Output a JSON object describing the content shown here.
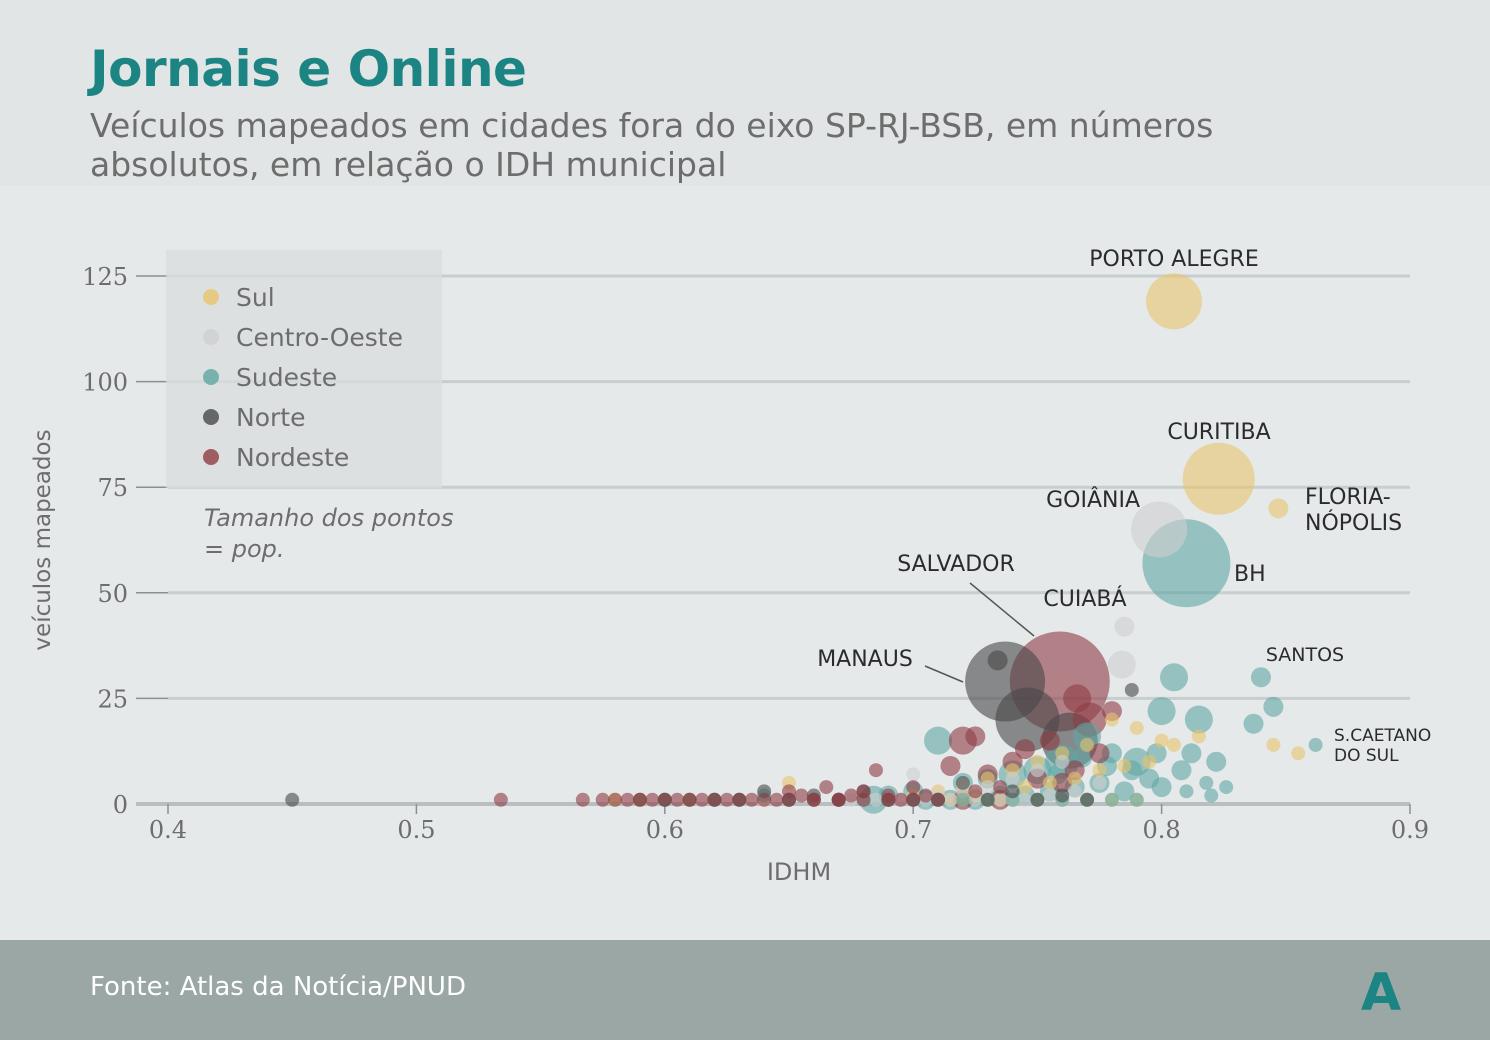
{
  "header": {
    "title": "Jornais e Online",
    "subtitle": "Veículos mapeados em cidades fora do eixo SP-RJ-BSB, em números absolutos, em relação o IDH municipal"
  },
  "footer": {
    "source": "Fonte: Atlas da Notícia/PNUD",
    "logo_text": "A"
  },
  "colors": {
    "Sul": "#e8c46c",
    "Centro-Oeste": "#cfcfcf",
    "Sudeste": "#5fa6a3",
    "Norte": "#484848",
    "Nordeste": "#8e3c44",
    "teal": "#1c8584"
  },
  "chart_data": {
    "type": "scatter",
    "title": "Jornais e Online",
    "subtitle": "Veículos mapeados em cidades fora do eixo SP-RJ-BSB, em números absolutos, em relação o IDH municipal",
    "xlabel": "IDHM",
    "ylabel": "veículos mapeados",
    "xlim": [
      0.4,
      0.9
    ],
    "ylim": [
      0,
      125
    ],
    "xticks": [
      "0.4",
      "0.5",
      "0.6",
      "0.7",
      "0.8",
      "0.9"
    ],
    "yticks": [
      "0",
      "25",
      "50",
      "75",
      "100",
      "125"
    ],
    "grid": true,
    "legend_position": "top-left",
    "legend": [
      "Sul",
      "Centro-Oeste",
      "Sudeste",
      "Norte",
      "Nordeste"
    ],
    "size_note": "Tamanho dos pontos = pop.",
    "labeled_points": [
      {
        "label": "PORTO ALEGRE",
        "region": "Sul",
        "x": 0.805,
        "y": 119,
        "size": 5
      },
      {
        "label": "CURITIBA",
        "region": "Sul",
        "x": 0.823,
        "y": 77,
        "size": 7
      },
      {
        "label": "FLORIA-NÓPOLIS",
        "region": "Sul",
        "x": 0.847,
        "y": 70,
        "size": 2
      },
      {
        "label": "GOIÂNIA",
        "region": "Centro-Oeste",
        "x": 0.799,
        "y": 65,
        "size": 5
      },
      {
        "label": "BH",
        "region": "Sudeste",
        "x": 0.81,
        "y": 57,
        "size": 9
      },
      {
        "label": "SALVADOR",
        "region": "Nordeste",
        "x": 0.759,
        "y": 29,
        "size": 10
      },
      {
        "label": "CUIABÁ",
        "region": "Centro-Oeste",
        "x": 0.785,
        "y": 42,
        "size": 2
      },
      {
        "label": "MANAUS",
        "region": "Norte",
        "x": 0.737,
        "y": 29,
        "size": 8
      },
      {
        "label": "SANTOS",
        "region": "Sudeste",
        "x": 0.84,
        "y": 30,
        "size": 2
      },
      {
        "label": "S.CAETANO DO SUL",
        "region": "Sudeste",
        "x": 0.862,
        "y": 14,
        "size": 1
      }
    ],
    "series": [
      {
        "name": "Sul",
        "points": [
          [
            0.805,
            119,
            5
          ],
          [
            0.823,
            77,
            7
          ],
          [
            0.847,
            70,
            2
          ],
          [
            0.845,
            14,
            1
          ],
          [
            0.855,
            12,
            1
          ],
          [
            0.78,
            20,
            1
          ],
          [
            0.79,
            18,
            1
          ],
          [
            0.77,
            14,
            1
          ],
          [
            0.8,
            15,
            1
          ],
          [
            0.76,
            12,
            1
          ],
          [
            0.75,
            10,
            1
          ],
          [
            0.74,
            8,
            1
          ],
          [
            0.73,
            6,
            1
          ],
          [
            0.72,
            4,
            1
          ],
          [
            0.71,
            3,
            1
          ],
          [
            0.7,
            2,
            1
          ],
          [
            0.69,
            1,
            1
          ],
          [
            0.68,
            1,
            1
          ],
          [
            0.67,
            1,
            1
          ],
          [
            0.66,
            1,
            1
          ],
          [
            0.65,
            5,
            1
          ],
          [
            0.64,
            1,
            1
          ],
          [
            0.63,
            1,
            1
          ],
          [
            0.62,
            1,
            1
          ],
          [
            0.61,
            1,
            1
          ],
          [
            0.6,
            1,
            1
          ],
          [
            0.59,
            1,
            1
          ],
          [
            0.58,
            1,
            1
          ],
          [
            0.765,
            6,
            1
          ],
          [
            0.775,
            8,
            1
          ],
          [
            0.755,
            5,
            1
          ],
          [
            0.745,
            4,
            1
          ],
          [
            0.785,
            9,
            1
          ],
          [
            0.795,
            10,
            1
          ],
          [
            0.805,
            14,
            1
          ],
          [
            0.815,
            16,
            1
          ],
          [
            0.725,
            2,
            1
          ],
          [
            0.735,
            1,
            1
          ],
          [
            0.715,
            1,
            1
          ],
          [
            0.76,
            1,
            1
          ],
          [
            0.77,
            1,
            1
          ],
          [
            0.78,
            1,
            1
          ],
          [
            0.79,
            1,
            1
          ],
          [
            0.75,
            1,
            1
          ],
          [
            0.74,
            1,
            1
          ],
          [
            0.73,
            1,
            1
          ],
          [
            0.72,
            1,
            1
          ],
          [
            0.71,
            1,
            1
          ]
        ]
      },
      {
        "name": "Centro-Oeste",
        "points": [
          [
            0.799,
            65,
            5
          ],
          [
            0.785,
            42,
            2
          ],
          [
            0.784,
            33,
            3
          ],
          [
            0.76,
            10,
            1
          ],
          [
            0.75,
            8,
            1
          ],
          [
            0.74,
            6,
            1
          ],
          [
            0.73,
            4,
            1
          ],
          [
            0.72,
            3,
            1
          ],
          [
            0.71,
            2,
            1
          ],
          [
            0.7,
            1,
            1
          ],
          [
            0.69,
            1,
            1
          ],
          [
            0.68,
            1,
            1
          ],
          [
            0.67,
            1,
            1
          ],
          [
            0.66,
            1,
            1
          ],
          [
            0.65,
            1,
            1
          ],
          [
            0.64,
            1,
            1
          ],
          [
            0.7,
            7,
            1
          ],
          [
            0.72,
            5,
            1
          ],
          [
            0.74,
            1,
            1
          ],
          [
            0.76,
            1,
            1
          ],
          [
            0.775,
            5,
            1
          ],
          [
            0.765,
            3,
            1
          ],
          [
            0.755,
            2,
            1
          ],
          [
            0.745,
            1,
            1
          ],
          [
            0.735,
            1,
            1
          ],
          [
            0.725,
            1,
            1
          ],
          [
            0.715,
            1,
            1
          ],
          [
            0.705,
            1,
            1
          ],
          [
            0.695,
            1,
            1
          ],
          [
            0.685,
            1,
            1
          ],
          [
            0.675,
            1,
            1
          ]
        ]
      },
      {
        "name": "Sudeste",
        "points": [
          [
            0.81,
            57,
            9
          ],
          [
            0.84,
            30,
            2
          ],
          [
            0.862,
            14,
            1
          ],
          [
            0.845,
            23,
            2
          ],
          [
            0.837,
            19,
            2
          ],
          [
            0.805,
            30,
            3
          ],
          [
            0.815,
            20,
            3
          ],
          [
            0.8,
            22,
            3
          ],
          [
            0.822,
            10,
            2
          ],
          [
            0.812,
            12,
            2
          ],
          [
            0.79,
            10,
            3
          ],
          [
            0.78,
            12,
            2
          ],
          [
            0.77,
            16,
            3
          ],
          [
            0.76,
            10,
            4
          ],
          [
            0.75,
            8,
            3
          ],
          [
            0.74,
            7,
            3
          ],
          [
            0.73,
            6,
            2
          ],
          [
            0.72,
            5,
            2
          ],
          [
            0.71,
            15,
            3
          ],
          [
            0.7,
            3,
            2
          ],
          [
            0.69,
            2,
            2
          ],
          [
            0.684,
            1,
            3
          ],
          [
            0.67,
            1,
            1
          ],
          [
            0.66,
            1,
            1
          ],
          [
            0.65,
            1,
            1
          ],
          [
            0.64,
            2,
            1
          ],
          [
            0.63,
            1,
            1
          ],
          [
            0.62,
            1,
            1
          ],
          [
            0.6,
            1,
            1
          ],
          [
            0.775,
            5,
            2
          ],
          [
            0.765,
            4,
            2
          ],
          [
            0.755,
            3,
            2
          ],
          [
            0.745,
            2,
            2
          ],
          [
            0.735,
            2,
            2
          ],
          [
            0.725,
            1,
            2
          ],
          [
            0.715,
            1,
            2
          ],
          [
            0.705,
            1,
            2
          ],
          [
            0.795,
            6,
            2
          ],
          [
            0.785,
            3,
            2
          ],
          [
            0.8,
            4,
            2
          ],
          [
            0.808,
            8,
            2
          ],
          [
            0.818,
            5,
            1
          ],
          [
            0.826,
            4,
            1
          ],
          [
            0.81,
            3,
            1
          ],
          [
            0.82,
            2,
            1
          ],
          [
            0.79,
            1,
            1
          ],
          [
            0.78,
            1,
            1
          ],
          [
            0.77,
            1,
            1
          ],
          [
            0.76,
            1,
            1
          ],
          [
            0.75,
            1,
            1
          ],
          [
            0.74,
            1,
            1
          ],
          [
            0.73,
            1,
            1
          ],
          [
            0.72,
            1,
            1
          ],
          [
            0.71,
            1,
            1
          ],
          [
            0.7,
            1,
            1
          ],
          [
            0.69,
            1,
            1
          ],
          [
            0.68,
            1,
            1
          ],
          [
            0.798,
            12,
            2
          ],
          [
            0.788,
            8,
            2
          ],
          [
            0.778,
            9,
            2
          ],
          [
            0.768,
            11,
            2
          ],
          [
            0.758,
            7,
            2
          ]
        ]
      },
      {
        "name": "Norte",
        "points": [
          [
            0.737,
            29,
            8
          ],
          [
            0.746,
            20,
            6
          ],
          [
            0.763,
            15,
            5
          ],
          [
            0.734,
            34,
            2
          ],
          [
            0.788,
            27,
            1
          ],
          [
            0.45,
            1,
            1
          ],
          [
            0.6,
            1,
            1
          ],
          [
            0.62,
            1,
            1
          ],
          [
            0.64,
            3,
            1
          ],
          [
            0.66,
            2,
            1
          ],
          [
            0.68,
            3,
            1
          ],
          [
            0.7,
            1,
            1
          ],
          [
            0.72,
            5,
            1
          ],
          [
            0.74,
            3,
            1
          ],
          [
            0.76,
            2,
            1
          ],
          [
            0.77,
            1,
            1
          ],
          [
            0.73,
            1,
            1
          ],
          [
            0.75,
            1,
            1
          ],
          [
            0.71,
            1,
            1
          ],
          [
            0.69,
            1,
            1
          ],
          [
            0.67,
            1,
            1
          ],
          [
            0.65,
            1,
            1
          ],
          [
            0.63,
            1,
            1
          ],
          [
            0.61,
            1,
            1
          ],
          [
            0.59,
            1,
            1
          ]
        ]
      },
      {
        "name": "Nordeste",
        "points": [
          [
            0.759,
            29,
            10
          ],
          [
            0.72,
            15,
            3
          ],
          [
            0.725,
            16,
            2
          ],
          [
            0.771,
            20,
            4
          ],
          [
            0.766,
            25,
            3
          ],
          [
            0.72,
            1,
            2
          ],
          [
            0.735,
            1,
            2
          ],
          [
            0.534,
            1,
            1
          ],
          [
            0.567,
            1,
            1
          ],
          [
            0.575,
            1,
            1
          ],
          [
            0.58,
            1,
            1
          ],
          [
            0.585,
            1,
            1
          ],
          [
            0.59,
            1,
            1
          ],
          [
            0.595,
            1,
            1
          ],
          [
            0.6,
            1,
            1
          ],
          [
            0.605,
            1,
            1
          ],
          [
            0.61,
            1,
            1
          ],
          [
            0.615,
            1,
            1
          ],
          [
            0.62,
            1,
            1
          ],
          [
            0.625,
            1,
            1
          ],
          [
            0.63,
            1,
            1
          ],
          [
            0.635,
            1,
            1
          ],
          [
            0.64,
            1,
            1
          ],
          [
            0.645,
            1,
            1
          ],
          [
            0.65,
            3,
            1
          ],
          [
            0.655,
            2,
            1
          ],
          [
            0.66,
            1,
            1
          ],
          [
            0.665,
            4,
            1
          ],
          [
            0.67,
            1,
            1
          ],
          [
            0.675,
            2,
            1
          ],
          [
            0.68,
            3,
            1
          ],
          [
            0.685,
            8,
            1
          ],
          [
            0.69,
            2,
            1
          ],
          [
            0.695,
            1,
            1
          ],
          [
            0.7,
            4,
            1
          ],
          [
            0.705,
            2,
            1
          ],
          [
            0.71,
            1,
            1
          ],
          [
            0.715,
            9,
            2
          ],
          [
            0.73,
            7,
            2
          ],
          [
            0.74,
            10,
            2
          ],
          [
            0.75,
            6,
            2
          ],
          [
            0.76,
            5,
            2
          ],
          [
            0.765,
            8,
            2
          ],
          [
            0.775,
            12,
            2
          ],
          [
            0.78,
            22,
            2
          ],
          [
            0.745,
            13,
            2
          ],
          [
            0.755,
            15,
            2
          ],
          [
            0.735,
            4,
            1
          ],
          [
            0.725,
            3,
            1
          ],
          [
            0.7,
            1,
            1
          ],
          [
            0.69,
            1,
            1
          ],
          [
            0.68,
            1,
            1
          ],
          [
            0.67,
            1,
            1
          ],
          [
            0.66,
            1,
            1
          ],
          [
            0.65,
            1,
            1
          ]
        ]
      }
    ]
  }
}
